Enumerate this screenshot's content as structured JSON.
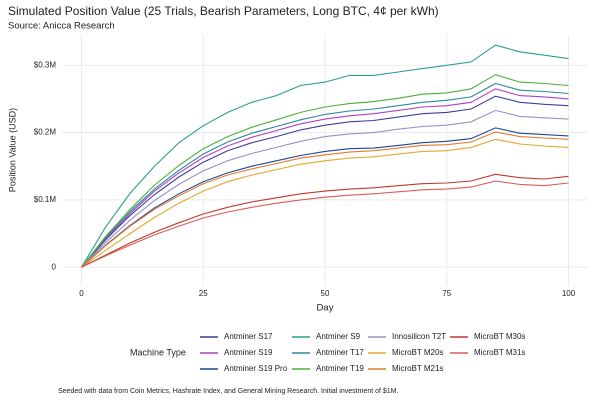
{
  "chart_data": {
    "type": "line",
    "title": "Simulated Position Value (25 Trials, Bearish Parameters, Long BTC, 4¢ per kWh)",
    "subtitle": "Source: Anicca Research",
    "y_label": "Position Value (USD)",
    "x_label": "Day",
    "legend_title": "Machine Type",
    "footnote": "Seeded with data from Coin Metrics, Hashrate Index, and General Mining Research. Initial investment of $1M.",
    "grid": true,
    "xlim": [
      -4,
      104
    ],
    "ylim": [
      -28000,
      345000
    ],
    "xticks": [
      0,
      25,
      50,
      75,
      100
    ],
    "yticks": [
      0,
      {
        "value": 100000,
        "label": "$0.1M"
      },
      {
        "value": 200000,
        "label": "$0.2M"
      },
      {
        "value": 300000,
        "label": "$0.3M"
      }
    ],
    "x": [
      0,
      5,
      10,
      15,
      20,
      25,
      30,
      35,
      40,
      45,
      50,
      55,
      60,
      65,
      70,
      75,
      80,
      85,
      90,
      95,
      100
    ],
    "series": [
      {
        "name": "Antminer S17",
        "color": "#3b3f9c",
        "values": [
          0,
          41000,
          77000,
          108000,
          134000,
          156000,
          173000,
          185000,
          194000,
          204000,
          211000,
          216000,
          218000,
          223000,
          228000,
          230000,
          235000,
          254000,
          245000,
          242000,
          240000
        ]
      },
      {
        "name": "Antminer S19",
        "color": "#b13fc4",
        "values": [
          0,
          43000,
          80000,
          113000,
          140000,
          163000,
          180000,
          193000,
          203000,
          213000,
          220000,
          225000,
          228000,
          233000,
          238000,
          240000,
          245000,
          265000,
          255000,
          253000,
          250000
        ]
      },
      {
        "name": "Antminer S19 Pro",
        "color": "#1f4690",
        "values": [
          0,
          33000,
          62000,
          88000,
          109000,
          127000,
          140000,
          150000,
          158000,
          166000,
          172000,
          176000,
          177000,
          181000,
          185000,
          187000,
          191000,
          207000,
          199000,
          197000,
          195000
        ]
      },
      {
        "name": "Antminer S9",
        "color": "#2a9d8f",
        "values": [
          0,
          60000,
          110000,
          150000,
          185000,
          210000,
          230000,
          245000,
          255000,
          270000,
          275000,
          285000,
          285000,
          290000,
          295000,
          300000,
          305000,
          330000,
          320000,
          315000,
          310000
        ]
      },
      {
        "name": "Antminer T17",
        "color": "#2b8a9e",
        "values": [
          0,
          44000,
          83000,
          116000,
          144000,
          168000,
          186000,
          199000,
          209000,
          219000,
          227000,
          232000,
          235000,
          240000,
          245000,
          248000,
          253000,
          273000,
          263000,
          261000,
          258000
        ]
      },
      {
        "name": "Antminer T19",
        "color": "#4caf3a",
        "values": [
          0,
          46000,
          86000,
          122000,
          151000,
          176000,
          194000,
          208000,
          219000,
          230000,
          238000,
          243000,
          246000,
          251000,
          257000,
          259000,
          265000,
          286000,
          275000,
          273000,
          270000
        ]
      },
      {
        "name": "Innosilicon T2T",
        "color": "#9b8fc8",
        "values": [
          0,
          37000,
          70000,
          99000,
          123000,
          143000,
          158000,
          169000,
          178000,
          187000,
          194000,
          198000,
          200000,
          205000,
          209000,
          211000,
          216000,
          233000,
          224000,
          222000,
          220000
        ]
      },
      {
        "name": "MicroBT M20s",
        "color": "#e2a72e",
        "values": [
          0,
          25000,
          50000,
          74000,
          95000,
          113000,
          127000,
          137000,
          145000,
          153000,
          158000,
          162000,
          164000,
          168000,
          172000,
          173000,
          178000,
          190000,
          183000,
          180000,
          178000
        ]
      },
      {
        "name": "MicroBT M21s",
        "color": "#e07b2c",
        "values": [
          0,
          32000,
          61000,
          86000,
          106000,
          124000,
          137000,
          146000,
          154000,
          162000,
          167000,
          171000,
          173000,
          177000,
          181000,
          182000,
          186000,
          201000,
          194000,
          192000,
          190000
        ]
      },
      {
        "name": "MicroBT M30s",
        "color": "#c0392b",
        "values": [
          0,
          18000,
          36000,
          52000,
          66000,
          79000,
          89000,
          97000,
          103000,
          109000,
          113000,
          116000,
          118000,
          121000,
          124000,
          125000,
          128000,
          138000,
          133000,
          131000,
          135000
        ]
      },
      {
        "name": "MicroBT M31s",
        "color": "#dc5a5a",
        "values": [
          0,
          17000,
          33000,
          48000,
          61000,
          73000,
          82000,
          89000,
          95000,
          100000,
          104000,
          107000,
          109000,
          112000,
          115000,
          116000,
          119000,
          128000,
          123000,
          121000,
          125000
        ]
      }
    ]
  }
}
